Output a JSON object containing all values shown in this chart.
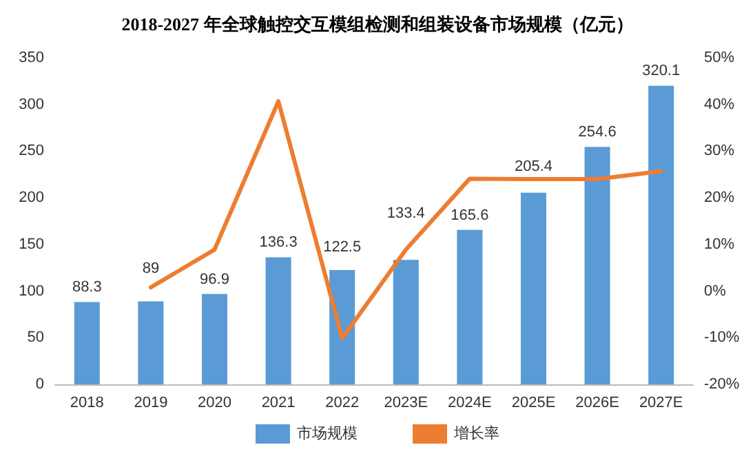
{
  "chart_data": {
    "type": "bar",
    "title": "2018-2027 年全球触控交互模组检测和组装设备市场规模（亿元）",
    "categories": [
      "2018",
      "2019",
      "2020",
      "2021",
      "2022",
      "2023E",
      "2024E",
      "2025E",
      "2026E",
      "2027E"
    ],
    "series": [
      {
        "name": "市场规模",
        "color": "#5b9bd5",
        "values": [
          88.3,
          89,
          96.9,
          136.3,
          122.5,
          133.4,
          165.6,
          205.4,
          254.6,
          320.1
        ],
        "data_labels": true
      },
      {
        "name": "增长率",
        "type": "line",
        "axis": "y2",
        "color": "#ed7d31",
        "marker": "none",
        "values": [
          null,
          0.8,
          8.9,
          40.7,
          -10.1,
          8.9,
          24.1,
          24.0,
          24.0,
          25.7
        ]
      }
    ],
    "ylim": [
      0,
      350
    ],
    "yticks": [
      0,
      50,
      100,
      150,
      200,
      250,
      300,
      350
    ],
    "y2lim": [
      -20,
      50
    ],
    "y2ticks": [
      {
        "value": -20,
        "label": "-20%"
      },
      {
        "value": -10,
        "label": "-10%"
      },
      {
        "value": 0,
        "label": "0%"
      },
      {
        "value": 10,
        "label": "10%"
      },
      {
        "value": 20,
        "label": "20%"
      },
      {
        "value": 30,
        "label": "30%"
      },
      {
        "value": 40,
        "label": "40%"
      },
      {
        "value": 50,
        "label": "50%"
      }
    ],
    "grid": false,
    "legend": "bottom"
  }
}
